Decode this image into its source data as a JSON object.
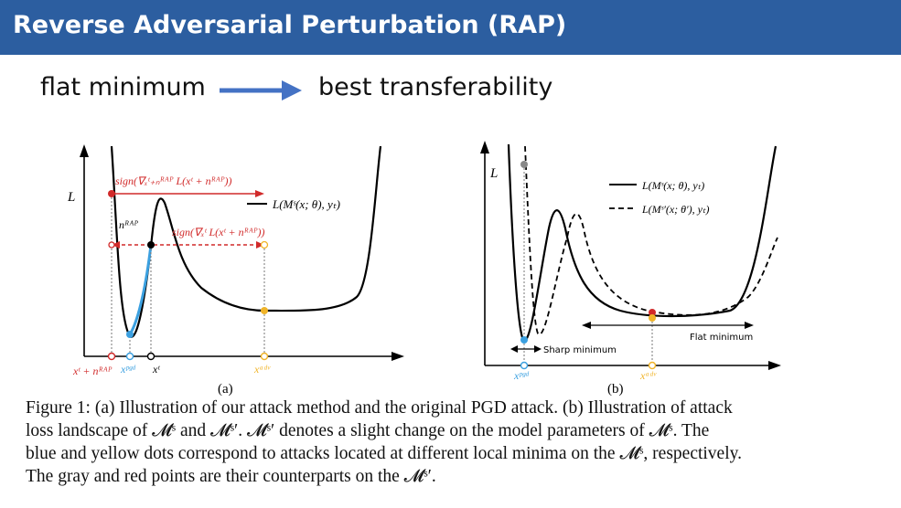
{
  "slide": {
    "title": "Reverse Adversarial Perturbation (RAP)",
    "flow_left": "flat minimum",
    "flow_right": "best transferability",
    "arrow_color": "#4472c4",
    "title_bar_color": "#2c5ea0"
  },
  "figure_a": {
    "y_axis_label": "L",
    "legend": "L(Mˢ(x; θ), yₜ)",
    "annot_top": "sign(∇ₓᵗ₊ₙᴿᴬᴾ L(xᵗ + nᴿᴬᴾ))",
    "annot_mid": "sign(∇ₓᵗ L(xᵗ + nᴿᴬᴾ))",
    "n_rap": "nᴿᴬᴾ",
    "tick_xrap": "xᵗ + nᴿᴬᴾ",
    "tick_xpgd": "xᵖᵍᵈ",
    "tick_xt": "xᵗ",
    "tick_xadv": "xᵃᵈᵛ",
    "sublabel": "(a)"
  },
  "figure_b": {
    "y_axis_label": "L",
    "legend_solid": "L(Mˢ(x; θ), yₜ)",
    "legend_dashed": "L(Mˢ′(x; θ′), yₜ)",
    "sharp_label": "Sharp minimum",
    "flat_label": "Flat minimum",
    "tick_xpgd": "xᵖᵍᵈ",
    "tick_xadv": "xᵃᵈᵛ",
    "sublabel": "(b)"
  },
  "caption": {
    "line1": "Figure 1: (a) Illustration of our attack method and the original PGD attack. (b) Illustration of attack",
    "line2": "loss landscape of 𝓜ˢ and 𝓜ˢ′. 𝓜ˢ′ denotes a slight change on the model parameters of 𝓜ˢ. The",
    "line3": "blue and yellow dots correspond to attacks located at different local minima on the 𝓜ˢ, respectively.",
    "line4": "The gray and red points are their counterparts on the 𝓜ˢ′."
  },
  "colors": {
    "red": "#d12a2a",
    "blue": "#3ba0e0",
    "yellow": "#f0b429",
    "gray": "#888888"
  }
}
